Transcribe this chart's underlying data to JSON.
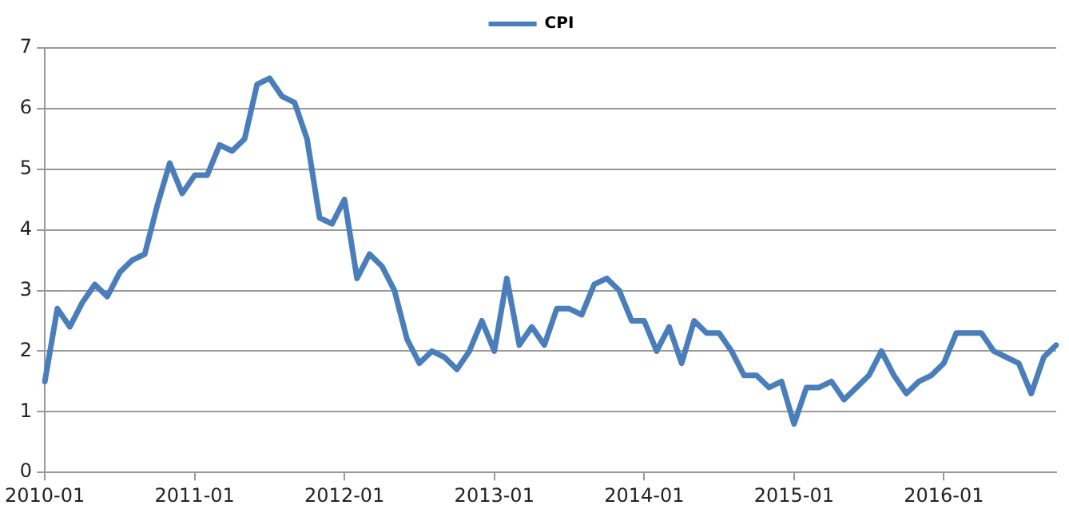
{
  "chart_data": {
    "type": "line",
    "categories": [
      "2010-01",
      null,
      null,
      null,
      null,
      null,
      null,
      null,
      null,
      null,
      null,
      null,
      "2011-01",
      null,
      null,
      null,
      null,
      null,
      null,
      null,
      null,
      null,
      null,
      null,
      "2012-01",
      null,
      null,
      null,
      null,
      null,
      null,
      null,
      null,
      null,
      null,
      null,
      "2013-01",
      null,
      null,
      null,
      null,
      null,
      null,
      null,
      null,
      null,
      null,
      null,
      "2014-01",
      null,
      null,
      null,
      null,
      null,
      null,
      null,
      null,
      null,
      null,
      null,
      "2015-01",
      null,
      null,
      null,
      null,
      null,
      null,
      null,
      null,
      null,
      null,
      null,
      "2016-01",
      null,
      null,
      null,
      null,
      null,
      null,
      null,
      null,
      null
    ],
    "series": [
      {
        "name": "CPI",
        "color": "#4a7ebb",
        "values": [
          1.5,
          2.7,
          2.4,
          2.8,
          3.1,
          2.9,
          3.3,
          3.5,
          3.6,
          4.4,
          5.1,
          4.6,
          4.9,
          4.9,
          5.4,
          5.3,
          5.5,
          6.4,
          6.5,
          6.2,
          6.1,
          5.5,
          4.2,
          4.1,
          4.5,
          3.2,
          3.6,
          3.4,
          3.0,
          2.2,
          1.8,
          2.0,
          1.9,
          1.7,
          2.0,
          2.5,
          2.0,
          3.2,
          2.1,
          2.4,
          2.1,
          2.7,
          2.7,
          2.6,
          3.1,
          3.2,
          3.0,
          2.5,
          2.5,
          2.0,
          2.4,
          1.8,
          2.5,
          2.3,
          2.3,
          2.0,
          1.6,
          1.6,
          1.4,
          1.5,
          0.8,
          1.4,
          1.4,
          1.5,
          1.2,
          1.4,
          1.6,
          2.0,
          1.6,
          1.3,
          1.5,
          1.6,
          1.8,
          2.3,
          2.3,
          2.3,
          2.0,
          1.9,
          1.8,
          1.3,
          1.9,
          2.1
        ]
      }
    ],
    "ylim": [
      0,
      7
    ],
    "yticks": [
      0,
      1,
      2,
      3,
      4,
      5,
      6,
      7
    ],
    "grid": "y",
    "legend": "top",
    "marker": "none",
    "line_style": "solid"
  }
}
